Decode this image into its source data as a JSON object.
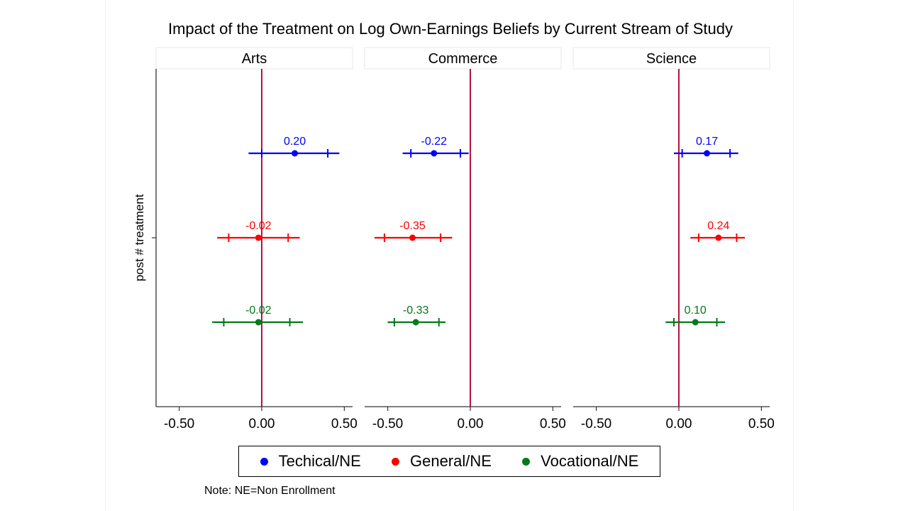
{
  "chart_data": {
    "type": "scatter",
    "subtype": "coefficient-plot",
    "title": "Impact of the Treatment on Log Own-Earnings Beliefs by Current Stream of Study",
    "ylabel": "post # treatment",
    "xlabel": "",
    "xlim": [
      -0.64,
      0.55
    ],
    "xticks": [
      -0.5,
      0.0,
      0.5
    ],
    "xtick_labels": [
      "-0.50",
      "0.00",
      "0.50"
    ],
    "reference_line": 0.0,
    "reference_line_color": "#b5103c",
    "legend_position": "bottom",
    "panels": [
      {
        "name": "Arts",
        "series": [
          {
            "name": "Techical/NE",
            "estimate": 0.2,
            "label": "0.20",
            "ci95": [
              -0.08,
              0.47
            ],
            "ci90": [
              0.0,
              0.4
            ]
          },
          {
            "name": "General/NE",
            "estimate": -0.02,
            "label": "-0.02",
            "ci95": [
              -0.27,
              0.23
            ],
            "ci90": [
              -0.2,
              0.16
            ]
          },
          {
            "name": "Vocational/NE",
            "estimate": -0.02,
            "label": "-0.02",
            "ci95": [
              -0.3,
              0.25
            ],
            "ci90": [
              -0.23,
              0.17
            ]
          }
        ]
      },
      {
        "name": "Commerce",
        "series": [
          {
            "name": "Techical/NE",
            "estimate": -0.22,
            "label": "-0.22",
            "ci95": [
              -0.41,
              -0.01
            ],
            "ci90": [
              -0.36,
              -0.06
            ]
          },
          {
            "name": "General/NE",
            "estimate": -0.35,
            "label": "-0.35",
            "ci95": [
              -0.58,
              -0.11
            ],
            "ci90": [
              -0.52,
              -0.18
            ]
          },
          {
            "name": "Vocational/NE",
            "estimate": -0.33,
            "label": "-0.33",
            "ci95": [
              -0.5,
              -0.15
            ],
            "ci90": [
              -0.46,
              -0.19
            ]
          }
        ]
      },
      {
        "name": "Science",
        "series": [
          {
            "name": "Techical/NE",
            "estimate": 0.17,
            "label": "0.17",
            "ci95": [
              -0.03,
              0.36
            ],
            "ci90": [
              0.02,
              0.31
            ]
          },
          {
            "name": "General/NE",
            "estimate": 0.24,
            "label": "0.24",
            "ci95": [
              0.07,
              0.4
            ],
            "ci90": [
              0.12,
              0.35
            ]
          },
          {
            "name": "Vocational/NE",
            "estimate": 0.1,
            "label": "0.10",
            "ci95": [
              -0.08,
              0.28
            ],
            "ci90": [
              -0.03,
              0.23
            ]
          }
        ]
      }
    ],
    "legend": [
      {
        "name": "Techical/NE",
        "color": "#0000ff"
      },
      {
        "name": "General/NE",
        "color": "#ff0000"
      },
      {
        "name": "Vocational/NE",
        "color": "#007a1a"
      }
    ],
    "note": "Note: NE=Non Enrollment"
  }
}
